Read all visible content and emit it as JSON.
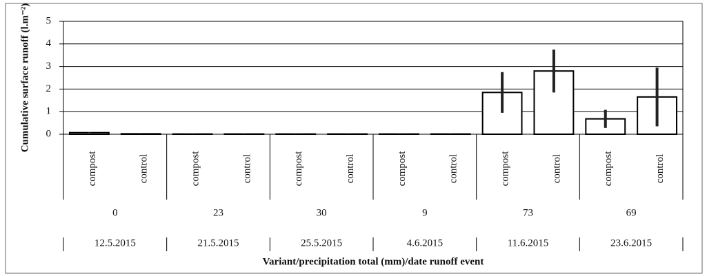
{
  "chart_data": {
    "type": "bar",
    "y_label": "Cumulative surface runoff (l.m⁻²)",
    "x_label": "Variant/precipitation total (mm)/date runoff event",
    "categories": [
      "compost",
      "control",
      "compost",
      "control",
      "compost",
      "control",
      "compost",
      "control",
      "compost",
      "control",
      "compost",
      "control"
    ],
    "precipitation": [
      "0",
      "23",
      "30",
      "9",
      "73",
      "69"
    ],
    "dates": [
      "12.5.2015",
      "21.5.2015",
      "25.5.2015",
      "4.6.2015",
      "11.6.2015",
      "23.6.2015"
    ],
    "values": [
      0.07,
      0.02,
      0.01,
      0.01,
      0.01,
      0.01,
      0.01,
      0.01,
      1.85,
      2.8,
      0.68,
      1.65
    ],
    "errors": [
      0.02,
      0.01,
      0.01,
      0.01,
      0.01,
      0.01,
      0.01,
      0.01,
      0.9,
      0.95,
      0.4,
      1.3
    ],
    "color": "#ffffff",
    "ylim": [
      0,
      5
    ],
    "yticks": [
      0,
      1,
      2,
      3,
      4,
      5
    ],
    "grid": true
  }
}
